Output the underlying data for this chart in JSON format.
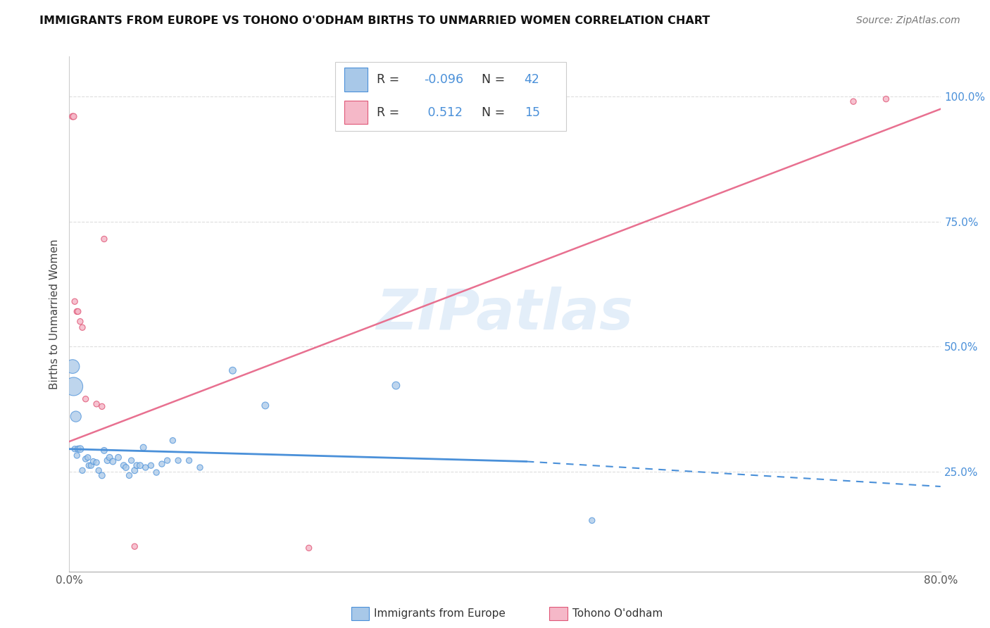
{
  "title": "IMMIGRANTS FROM EUROPE VS TOHONO O'ODHAM BIRTHS TO UNMARRIED WOMEN CORRELATION CHART",
  "source": "Source: ZipAtlas.com",
  "ylabel": "Births to Unmarried Women",
  "xlim": [
    0.0,
    0.8
  ],
  "ylim": [
    0.05,
    1.08
  ],
  "yticks": [
    0.25,
    0.5,
    0.75,
    1.0
  ],
  "ytick_labels": [
    "25.0%",
    "50.0%",
    "75.0%",
    "100.0%"
  ],
  "blue_color": "#a8c8e8",
  "blue_edge": "#4a90d9",
  "pink_color": "#f5b8c8",
  "pink_edge": "#e05878",
  "trend_blue": "#4a90d9",
  "trend_pink": "#e87090",
  "watermark": "ZIPatlas",
  "blue_scatter_x": [
    0.005,
    0.007,
    0.008,
    0.01,
    0.012,
    0.015,
    0.017,
    0.018,
    0.02,
    0.022,
    0.025,
    0.027,
    0.03,
    0.032,
    0.035,
    0.037,
    0.04,
    0.045,
    0.05,
    0.052,
    0.055,
    0.057,
    0.06,
    0.062,
    0.065,
    0.068,
    0.07,
    0.075,
    0.08,
    0.085,
    0.09,
    0.095,
    0.1,
    0.11,
    0.12,
    0.15,
    0.18,
    0.3,
    0.48,
    0.003,
    0.004,
    0.006
  ],
  "blue_scatter_y": [
    0.295,
    0.282,
    0.295,
    0.295,
    0.252,
    0.275,
    0.278,
    0.262,
    0.262,
    0.27,
    0.268,
    0.252,
    0.242,
    0.292,
    0.272,
    0.278,
    0.27,
    0.278,
    0.262,
    0.258,
    0.242,
    0.272,
    0.252,
    0.262,
    0.262,
    0.298,
    0.258,
    0.262,
    0.248,
    0.265,
    0.272,
    0.312,
    0.272,
    0.272,
    0.258,
    0.452,
    0.382,
    0.422,
    0.152,
    0.46,
    0.42,
    0.36
  ],
  "blue_scatter_s": [
    35,
    35,
    40,
    50,
    35,
    35,
    35,
    35,
    35,
    35,
    35,
    35,
    40,
    40,
    40,
    40,
    40,
    40,
    40,
    40,
    35,
    35,
    40,
    40,
    40,
    40,
    35,
    35,
    35,
    35,
    35,
    35,
    35,
    35,
    35,
    50,
    50,
    60,
    35,
    200,
    350,
    120
  ],
  "pink_scatter_x": [
    0.003,
    0.004,
    0.005,
    0.007,
    0.008,
    0.01,
    0.012,
    0.015,
    0.025,
    0.03,
    0.032,
    0.06,
    0.22,
    0.72,
    0.75
  ],
  "pink_scatter_y": [
    0.96,
    0.96,
    0.59,
    0.57,
    0.57,
    0.55,
    0.538,
    0.395,
    0.385,
    0.38,
    0.715,
    0.1,
    0.097,
    0.99,
    0.995
  ],
  "pink_scatter_s": [
    40,
    40,
    35,
    35,
    35,
    35,
    35,
    35,
    35,
    35,
    35,
    35,
    35,
    35,
    35
  ],
  "blue_trend_x": [
    0.0,
    0.42,
    0.8
  ],
  "blue_trend_y": [
    0.295,
    0.27,
    0.22
  ],
  "blue_dash_from": 1,
  "pink_trend_x0": 0.0,
  "pink_trend_x1": 0.8,
  "pink_trend_y0": 0.31,
  "pink_trend_y1": 0.975
}
